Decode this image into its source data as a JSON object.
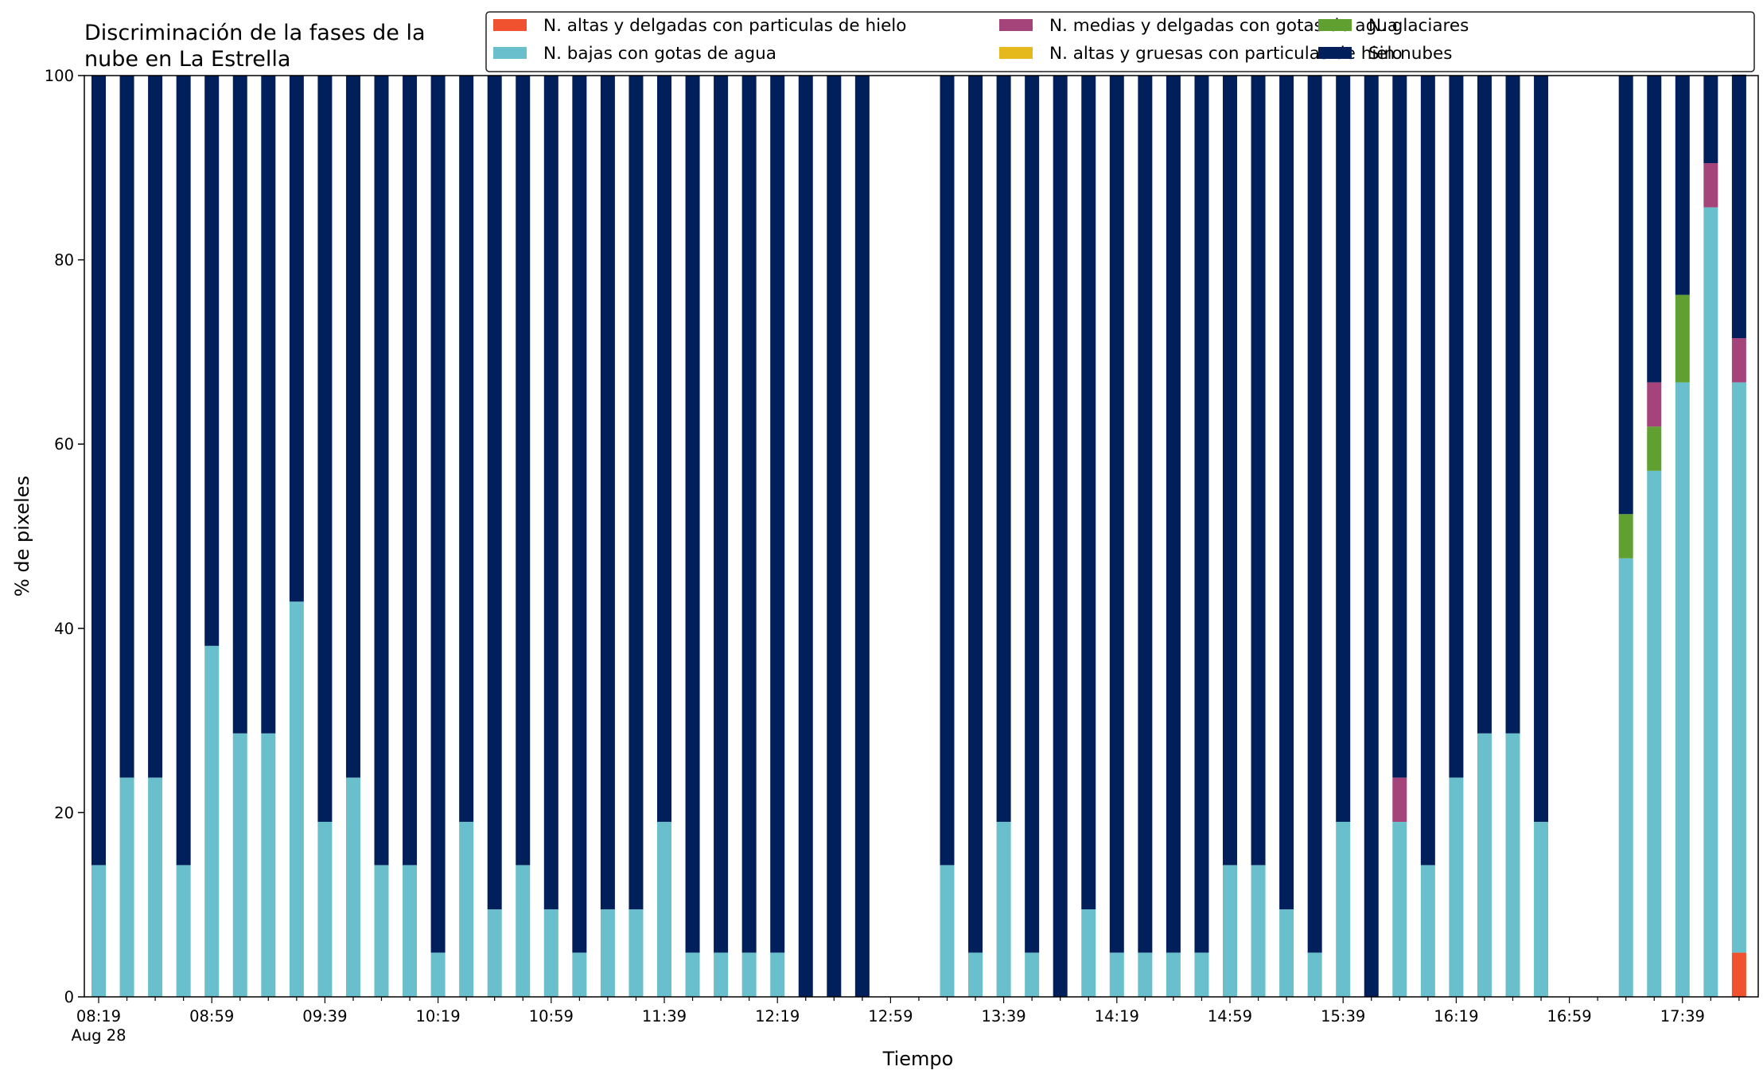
{
  "chart_data": {
    "type": "bar",
    "stacked": true,
    "title_line1": "Discriminación de la fases de la",
    "title_line2": "nube en La Estrella",
    "xlabel": "Tiempo",
    "ylabel": "% de pixeles",
    "ylim": [
      0,
      100
    ],
    "yticks": [
      "0",
      "20",
      "40",
      "60",
      "80",
      "100"
    ],
    "xtick_labels": [
      "08:19",
      "08:59",
      "09:39",
      "10:19",
      "10:59",
      "11:39",
      "12:19",
      "12:59",
      "13:39",
      "14:19",
      "14:59",
      "15:39",
      "16:19",
      "16:59",
      "17:39"
    ],
    "xtick_sublabel": "Aug 28",
    "grid": false,
    "legend_position": "top-right",
    "colors": {
      "altas_delgadas_hielo": "#f0512e",
      "altas_gruesas_hielo": "#e5b81b",
      "bajas_agua": "#69bfcb",
      "glaciares": "#5fa030",
      "medias_delgadas_agua": "#a5447a",
      "sin_nubes": "#011f5b"
    },
    "series": [
      {
        "key": "altas_delgadas_hielo",
        "name": "N. altas y delgadas con particulas de hielo",
        "values": [
          0,
          0,
          0,
          0,
          0,
          0,
          0,
          0,
          0,
          0,
          0,
          0,
          0,
          0,
          0,
          0,
          0,
          0,
          0,
          0,
          0,
          0,
          0,
          0,
          0,
          0,
          0,
          0,
          0,
          0,
          0,
          0,
          0,
          0,
          0,
          0,
          0,
          0,
          0,
          0,
          0,
          0,
          0,
          0,
          0,
          0,
          0,
          0,
          0,
          0,
          0,
          0,
          0,
          0,
          0,
          0,
          0,
          0,
          4.8
        ]
      },
      {
        "key": "altas_gruesas_hielo",
        "name": "N. altas y gruesas con particulas de hielo",
        "values": [
          0,
          0,
          0,
          0,
          0,
          0,
          0,
          0,
          0,
          0,
          0,
          0,
          0,
          0,
          0,
          0,
          0,
          0,
          0,
          0,
          0,
          0,
          0,
          0,
          0,
          0,
          0,
          0,
          0,
          0,
          0,
          0,
          0,
          0,
          0,
          0,
          0,
          0,
          0,
          0,
          0,
          0,
          0,
          0,
          0,
          0,
          0,
          0,
          0,
          0,
          0,
          0,
          0,
          0,
          0,
          0,
          0,
          0,
          0
        ]
      },
      {
        "key": "bajas_agua",
        "name": "N. bajas con gotas de agua",
        "values": [
          14.3,
          23.8,
          23.8,
          14.3,
          38.1,
          28.6,
          28.6,
          42.9,
          19.0,
          23.8,
          14.3,
          14.3,
          4.8,
          19.0,
          9.5,
          14.3,
          9.5,
          4.8,
          9.5,
          9.5,
          19.0,
          4.8,
          4.8,
          4.8,
          4.8,
          0,
          0,
          0,
          0,
          0,
          14.3,
          4.8,
          19.0,
          4.8,
          0,
          9.5,
          4.8,
          4.8,
          4.8,
          4.8,
          14.3,
          14.3,
          9.5,
          4.8,
          19.0,
          0,
          19.0,
          14.3,
          23.8,
          28.6,
          28.6,
          19.0,
          0,
          0,
          47.6,
          57.1,
          66.7,
          85.7,
          61.9
        ]
      },
      {
        "key": "glaciares",
        "name": "N. glaciares",
        "values": [
          0,
          0,
          0,
          0,
          0,
          0,
          0,
          0,
          0,
          0,
          0,
          0,
          0,
          0,
          0,
          0,
          0,
          0,
          0,
          0,
          0,
          0,
          0,
          0,
          0,
          0,
          0,
          0,
          0,
          0,
          0,
          0,
          0,
          0,
          0,
          0,
          0,
          0,
          0,
          0,
          0,
          0,
          0,
          0,
          0,
          0,
          0,
          0,
          0,
          0,
          0,
          0,
          0,
          0,
          4.8,
          4.8,
          9.5,
          0,
          0
        ]
      },
      {
        "key": "medias_delgadas_agua",
        "name": "N. medias y delgadas con gotas de agua",
        "values": [
          0,
          0,
          0,
          0,
          0,
          0,
          0,
          0,
          0,
          0,
          0,
          0,
          0,
          0,
          0,
          0,
          0,
          0,
          0,
          0,
          0,
          0,
          0,
          0,
          0,
          0,
          0,
          0,
          0,
          0,
          0,
          0,
          0,
          0,
          0,
          0,
          0,
          0,
          0,
          0,
          0,
          0,
          0,
          0,
          0,
          0,
          4.8,
          0,
          0,
          0,
          0,
          0,
          0,
          0,
          0,
          4.8,
          0,
          4.8,
          4.8
        ]
      },
      {
        "key": "sin_nubes",
        "name": "Sin nubes",
        "values": [
          85.7,
          76.2,
          76.2,
          85.7,
          61.9,
          71.4,
          71.4,
          57.1,
          81.0,
          76.2,
          85.7,
          85.7,
          95.2,
          81.0,
          90.5,
          85.7,
          90.5,
          95.2,
          90.5,
          90.5,
          81.0,
          95.2,
          95.2,
          95.2,
          95.2,
          100,
          100,
          100,
          0,
          0,
          85.7,
          95.2,
          81.0,
          95.2,
          100,
          90.5,
          95.2,
          95.2,
          95.2,
          95.2,
          85.7,
          85.7,
          90.5,
          95.2,
          81.0,
          100,
          76.2,
          85.7,
          76.2,
          71.4,
          71.4,
          81.0,
          0,
          0,
          47.6,
          33.3,
          23.8,
          9.5,
          28.6
        ]
      }
    ],
    "legend_order": [
      "altas_delgadas_hielo",
      "bajas_agua",
      "medias_delgadas_agua",
      "altas_gruesas_hielo",
      "glaciares",
      "sin_nubes"
    ]
  }
}
